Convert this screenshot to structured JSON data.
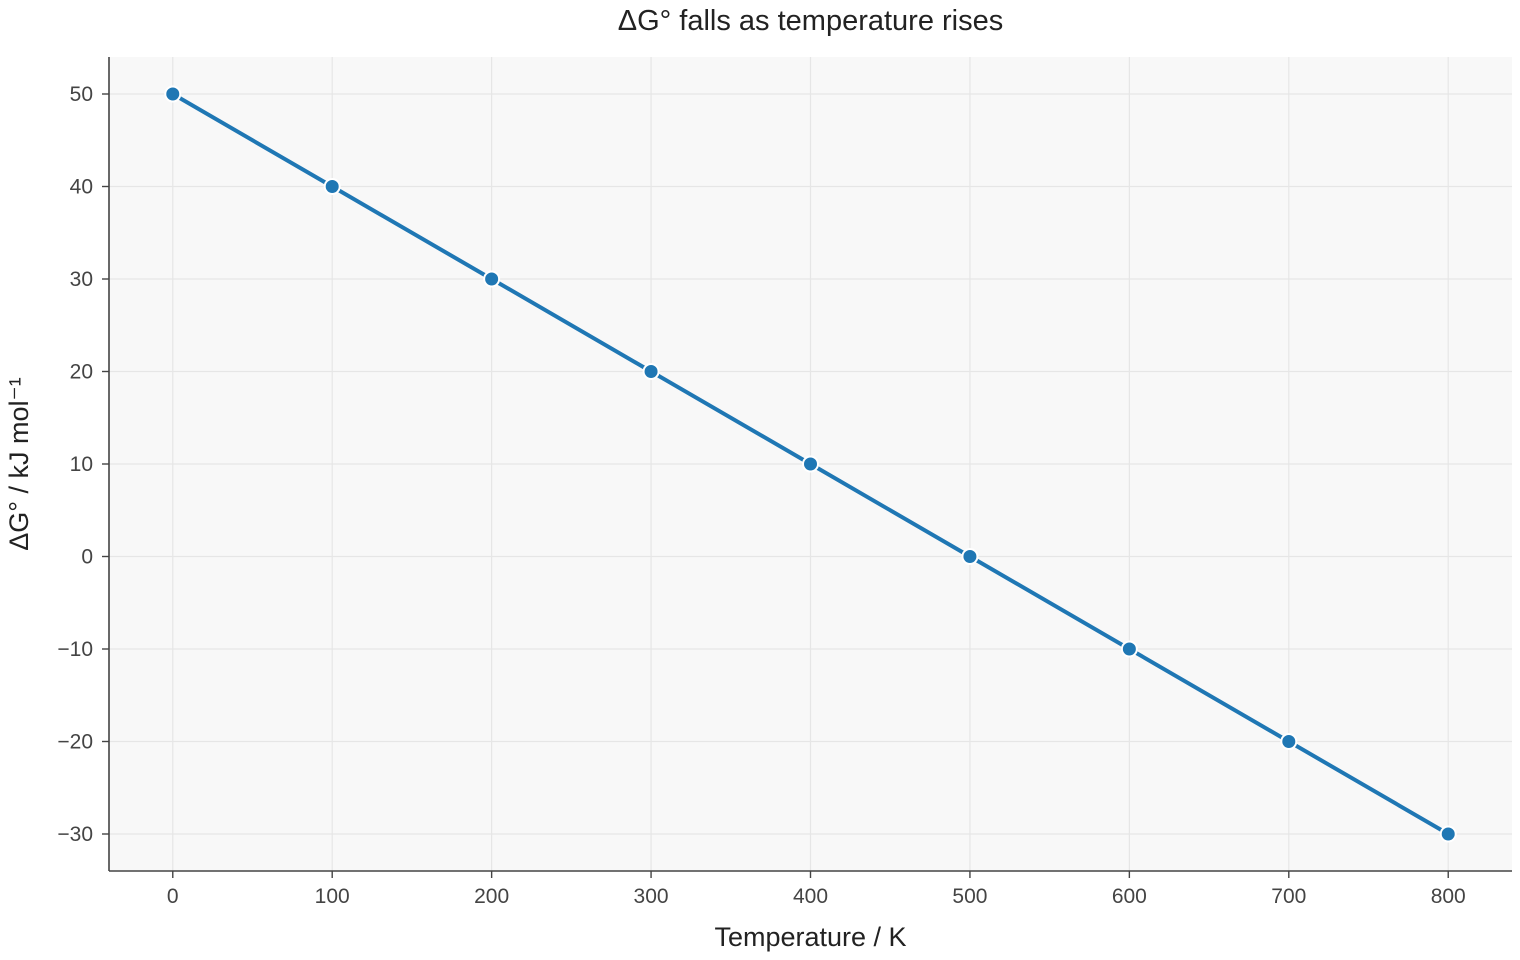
{
  "chart_data": {
    "type": "line",
    "title": "ΔG° falls as temperature rises",
    "xlabel": "Temperature / K",
    "ylabel": "ΔG° / kJ mol⁻¹",
    "x": [
      0,
      100,
      200,
      300,
      400,
      500,
      600,
      700,
      800
    ],
    "series": [
      {
        "values": [
          50,
          40,
          30,
          20,
          10,
          0,
          -10,
          -20,
          -30
        ],
        "color": "#1f77b4",
        "marker": "circle"
      }
    ],
    "xlim": [
      -40,
      840
    ],
    "ylim": [
      -34,
      54
    ],
    "xticks": [
      0,
      100,
      200,
      300,
      400,
      500,
      600,
      700,
      800
    ],
    "xtick_labels": [
      "0",
      "100",
      "200",
      "300",
      "400",
      "500",
      "600",
      "700",
      "800"
    ],
    "yticks": [
      -30,
      -20,
      -10,
      0,
      10,
      20,
      30,
      40,
      50
    ],
    "ytick_labels": [
      "−30",
      "−20",
      "−10",
      "0",
      "10",
      "20",
      "30",
      "40",
      "50"
    ],
    "grid": true,
    "plot_background": "#f8f8f8",
    "grid_color": "#e6e6e6",
    "axis_color": "#444444"
  }
}
